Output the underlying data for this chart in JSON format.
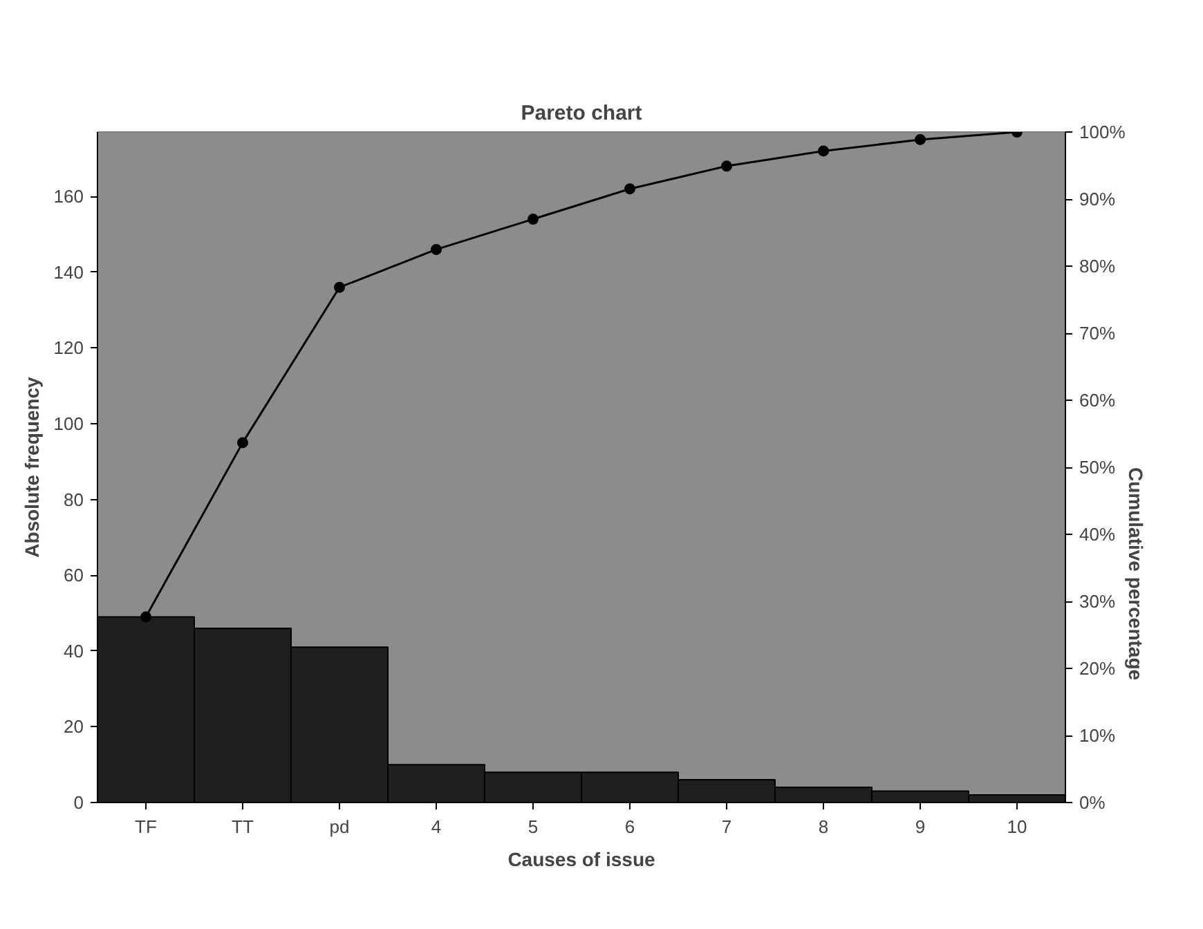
{
  "chart_data": {
    "type": "bar",
    "title": "Pareto chart",
    "xlabel": "Causes of issue",
    "ylabel": "Absolute frequency",
    "y2label": "Cumulative percentage",
    "categories": [
      "TF",
      "TT",
      "pd",
      "4",
      "5",
      "6",
      "7",
      "8",
      "9",
      "10"
    ],
    "series": [
      {
        "color": "#1e1f1e",
        "values": [
          49,
          46,
          41,
          10,
          8,
          8,
          6,
          4,
          3,
          2
        ]
      },
      {
        "type": "line",
        "color": "#000000",
        "marker": "circle",
        "line_style": "solid",
        "values": [
          49,
          95,
          136,
          146,
          154,
          162,
          168,
          172,
          175,
          177
        ]
      }
    ],
    "ylim": [
      0,
      177
    ],
    "yticks": [
      0,
      20,
      40,
      60,
      80,
      100,
      120,
      140,
      160
    ],
    "y2lim": [
      0,
      100
    ],
    "y2ticks": [
      {
        "value": 0,
        "label": "0%"
      },
      {
        "value": 10,
        "label": "10%"
      },
      {
        "value": 20,
        "label": "20%"
      },
      {
        "value": 30,
        "label": "30%"
      },
      {
        "value": 40,
        "label": "40%"
      },
      {
        "value": 50,
        "label": "50%"
      },
      {
        "value": 60,
        "label": "60%"
      },
      {
        "value": 70,
        "label": "70%"
      },
      {
        "value": 80,
        "label": "80%"
      },
      {
        "value": 90,
        "label": "90%"
      },
      {
        "value": 100,
        "label": "100%"
      }
    ],
    "grid": false
  }
}
